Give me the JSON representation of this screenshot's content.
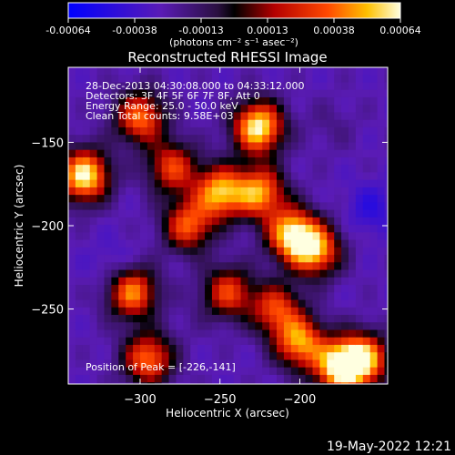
{
  "chart_data": {
    "type": "heatmap",
    "title": "Reconstructed RHESSI Image",
    "xlabel": "Heliocentric X (arcsec)",
    "ylabel": "Heliocentric Y (arcsec)",
    "xlim": [
      -345,
      -145
    ],
    "ylim": [
      -295,
      -105
    ],
    "xticks": [
      -300,
      -250,
      -200
    ],
    "yticks": [
      -150,
      -200,
      -250
    ],
    "colorbar": {
      "min": -0.00064,
      "max": 0.00064,
      "ticks": [
        "-0.00064",
        "-0.00038",
        "-0.00013",
        "0.00013",
        "0.00038",
        "0.00064"
      ],
      "units": "(photons cm⁻² s⁻¹ asec⁻²)"
    },
    "info_lines": [
      "28-Dec-2013 04:30:08.000 to 04:33:12.000",
      "Detectors: 3F 4F 5F 6F 7F 8F, Att 0",
      "Energy Range: 25.0 - 50.0 keV",
      "Clean     Total counts: 9.58E+03"
    ],
    "peak_label": "Position of Peak = [-226,-141]",
    "peak": [
      -226,
      -141
    ],
    "hot_spots": [
      {
        "x": -335,
        "y": -170,
        "v": 0.00064
      },
      {
        "x": -300,
        "y": -135,
        "v": 0.0004
      },
      {
        "x": -226,
        "y": -141,
        "v": 0.00064
      },
      {
        "x": -250,
        "y": -180,
        "v": 0.0005
      },
      {
        "x": -225,
        "y": -180,
        "v": 0.00045
      },
      {
        "x": -205,
        "y": -205,
        "v": 0.00055
      },
      {
        "x": -190,
        "y": -215,
        "v": 0.00045
      },
      {
        "x": -270,
        "y": -200,
        "v": 0.00035
      },
      {
        "x": -245,
        "y": -240,
        "v": 0.0003
      },
      {
        "x": -305,
        "y": -240,
        "v": 0.00045
      },
      {
        "x": -295,
        "y": -280,
        "v": 0.0004
      },
      {
        "x": -200,
        "y": -270,
        "v": 0.00045
      },
      {
        "x": -175,
        "y": -285,
        "v": 0.0006
      },
      {
        "x": -160,
        "y": -280,
        "v": 0.0005
      },
      {
        "x": -215,
        "y": -250,
        "v": 0.0003
      },
      {
        "x": -280,
        "y": -165,
        "v": 0.0003
      }
    ],
    "cold_spots": [
      {
        "x": -315,
        "y": -225,
        "v": -0.0004
      },
      {
        "x": -155,
        "y": -190,
        "v": -0.00045
      },
      {
        "x": -180,
        "y": -140,
        "v": -0.0002
      },
      {
        "x": -270,
        "y": -255,
        "v": -0.00025
      }
    ]
  },
  "footer": {
    "timestamp": "19-May-2022 12:21"
  }
}
